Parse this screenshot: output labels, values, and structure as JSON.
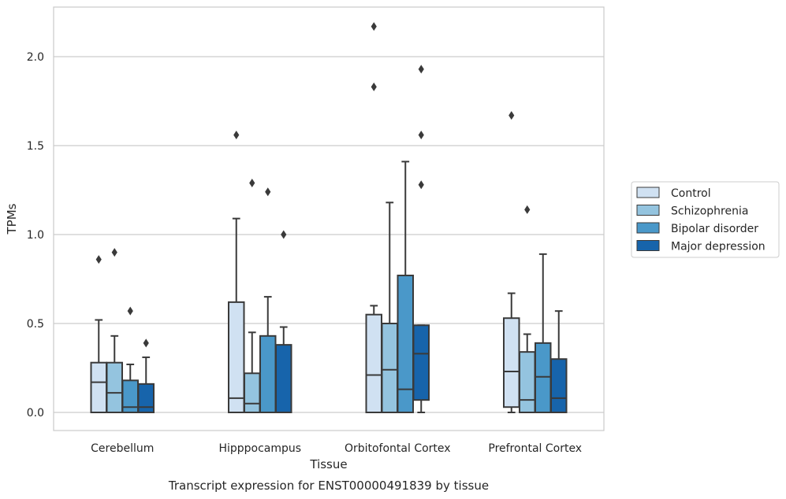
{
  "chart_data": {
    "type": "box",
    "title": "Transcript expression for ENST00000491839 by tissue",
    "xlabel": "Tissue",
    "ylabel": "TPMs",
    "ylim": [
      -0.1,
      2.28
    ],
    "yticks": [
      "0.0",
      "0.5",
      "1.0",
      "1.5",
      "2.0"
    ],
    "ytick_values": [
      0.0,
      0.5,
      1.0,
      1.5,
      2.0
    ],
    "grid": true,
    "legend_position": "right",
    "categories": [
      "Cerebellum",
      "Hipppocampus",
      "Orbitofontal Cortex",
      "Prefrontal Cortex"
    ],
    "series": [
      {
        "name": "Control",
        "color": "#d0e1f2",
        "boxes": [
          {
            "whislo": 0.0,
            "q1": 0.0,
            "med": 0.17,
            "q3": 0.28,
            "whishi": 0.52,
            "fliers": [
              0.86
            ]
          },
          {
            "whislo": 0.0,
            "q1": 0.0,
            "med": 0.08,
            "q3": 0.62,
            "whishi": 1.09,
            "fliers": [
              1.56
            ]
          },
          {
            "whislo": 0.0,
            "q1": 0.0,
            "med": 0.21,
            "q3": 0.55,
            "whishi": 0.6,
            "fliers": [
              1.83,
              2.17
            ]
          },
          {
            "whislo": 0.0,
            "q1": 0.03,
            "med": 0.23,
            "q3": 0.53,
            "whishi": 0.67,
            "fliers": [
              1.67
            ]
          }
        ]
      },
      {
        "name": "Schizophrenia",
        "color": "#94c4df",
        "boxes": [
          {
            "whislo": 0.0,
            "q1": 0.0,
            "med": 0.11,
            "q3": 0.28,
            "whishi": 0.43,
            "fliers": [
              0.9
            ]
          },
          {
            "whislo": 0.0,
            "q1": 0.0,
            "med": 0.05,
            "q3": 0.22,
            "whishi": 0.45,
            "fliers": [
              1.29
            ]
          },
          {
            "whislo": 0.0,
            "q1": 0.0,
            "med": 0.24,
            "q3": 0.5,
            "whishi": 1.18,
            "fliers": []
          },
          {
            "whislo": 0.0,
            "q1": 0.0,
            "med": 0.07,
            "q3": 0.34,
            "whishi": 0.44,
            "fliers": [
              1.14
            ]
          }
        ]
      },
      {
        "name": "Bipolar disorder",
        "color": "#4a98c9",
        "boxes": [
          {
            "whislo": 0.0,
            "q1": 0.0,
            "med": 0.03,
            "q3": 0.18,
            "whishi": 0.27,
            "fliers": [
              0.57
            ]
          },
          {
            "whislo": 0.0,
            "q1": 0.0,
            "med": 0.0,
            "q3": 0.43,
            "whishi": 0.65,
            "fliers": [
              1.24
            ]
          },
          {
            "whislo": 0.0,
            "q1": 0.0,
            "med": 0.13,
            "q3": 0.77,
            "whishi": 1.41,
            "fliers": []
          },
          {
            "whislo": 0.0,
            "q1": 0.0,
            "med": 0.2,
            "q3": 0.39,
            "whishi": 0.89,
            "fliers": []
          }
        ]
      },
      {
        "name": "Major depression",
        "color": "#1764ab",
        "boxes": [
          {
            "whislo": 0.0,
            "q1": 0.0,
            "med": 0.03,
            "q3": 0.16,
            "whishi": 0.31,
            "fliers": [
              0.39
            ]
          },
          {
            "whislo": 0.0,
            "q1": 0.0,
            "med": 0.0,
            "q3": 0.38,
            "whishi": 0.48,
            "fliers": [
              1.0
            ]
          },
          {
            "whislo": 0.0,
            "q1": 0.07,
            "med": 0.33,
            "q3": 0.49,
            "whishi": 0.49,
            "fliers": [
              1.28,
              1.56,
              1.93
            ]
          },
          {
            "whislo": 0.0,
            "q1": 0.0,
            "med": 0.08,
            "q3": 0.3,
            "whishi": 0.57,
            "fliers": []
          }
        ]
      }
    ]
  }
}
